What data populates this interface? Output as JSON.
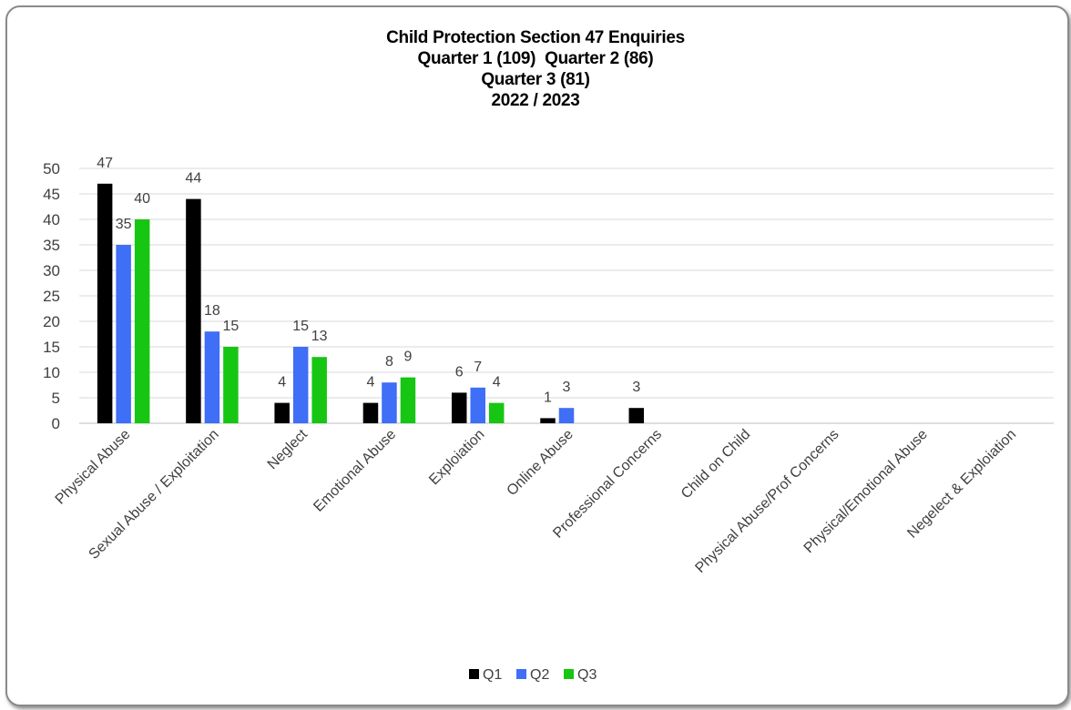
{
  "chart_data": {
    "type": "bar",
    "title_lines": [
      "Child Protection Section 47 Enquiries",
      "Quarter 1 (109)  Quarter 2 (86)",
      "Quarter 3 (81)",
      "2022 / 2023"
    ],
    "categories": [
      "Physical Abuse",
      "Sexual Abuse / Exploitation",
      "Neglect",
      "Emotional Abuse",
      "Exploiation",
      "Online Abuse",
      "Professional Concerns",
      "Child on Child",
      "Physical Abuse/Prof Concerns",
      "Physical/Emotional Abuse",
      "Negelect & Exploiation"
    ],
    "series": [
      {
        "name": "Q1",
        "color": "#000000",
        "values": [
          47,
          44,
          4,
          4,
          6,
          1,
          3,
          null,
          null,
          null,
          null
        ]
      },
      {
        "name": "Q2",
        "color": "#3f6ef7",
        "values": [
          35,
          18,
          15,
          8,
          7,
          3,
          null,
          null,
          null,
          null,
          null
        ]
      },
      {
        "name": "Q3",
        "color": "#16c613",
        "values": [
          40,
          15,
          13,
          9,
          4,
          null,
          null,
          null,
          null,
          null,
          null
        ]
      }
    ],
    "ylim": [
      0,
      50
    ],
    "yticks": [
      0,
      5,
      10,
      15,
      20,
      25,
      30,
      35,
      40,
      45,
      50
    ],
    "grid": true,
    "legend_position": "bottom"
  }
}
